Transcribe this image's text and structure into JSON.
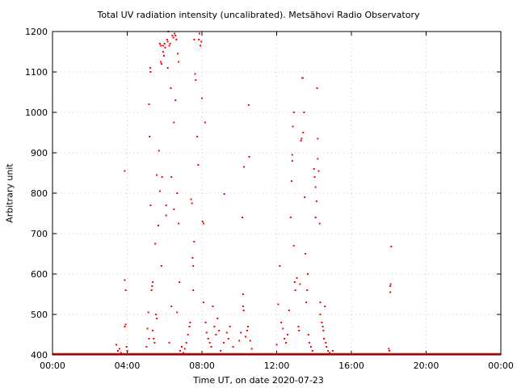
{
  "chart_data": {
    "type": "scatter",
    "title": "Total UV radiation intensity (uncalibrated). Metsähovi Radio Observatory",
    "xlabel": "Time UT, on date 2020-07-23",
    "ylabel": "Arbitrary unit",
    "xlim": [
      "00:00",
      "24:00"
    ],
    "ylim": [
      400,
      1200
    ],
    "x_ticks": [
      "00:00",
      "04:00",
      "08:00",
      "12:00",
      "16:00",
      "20:00",
      "00:00"
    ],
    "y_ticks": [
      "400",
      "500",
      "600",
      "700",
      "800",
      "900",
      "1000",
      "1100",
      "1200"
    ],
    "grid": true,
    "series_color": "#ff0000",
    "baseline": {
      "value": 400,
      "from": "00:00",
      "to": "24:00"
    },
    "points": [
      {
        "x": "03:25",
        "y": 425
      },
      {
        "x": "03:30",
        "y": 410
      },
      {
        "x": "03:35",
        "y": 415
      },
      {
        "x": "03:40",
        "y": 405
      },
      {
        "x": "03:52",
        "y": 855
      },
      {
        "x": "03:52",
        "y": 585
      },
      {
        "x": "03:55",
        "y": 560
      },
      {
        "x": "03:52",
        "y": 470
      },
      {
        "x": "03:55",
        "y": 475
      },
      {
        "x": "03:58",
        "y": 420
      },
      {
        "x": "04:00",
        "y": 410
      },
      {
        "x": "05:02",
        "y": 420
      },
      {
        "x": "05:05",
        "y": 465
      },
      {
        "x": "05:08",
        "y": 505
      },
      {
        "x": "05:10",
        "y": 440
      },
      {
        "x": "05:10",
        "y": 1020
      },
      {
        "x": "05:12",
        "y": 940
      },
      {
        "x": "05:14",
        "y": 1110
      },
      {
        "x": "05:15",
        "y": 1100
      },
      {
        "x": "05:15",
        "y": 770
      },
      {
        "x": "05:18",
        "y": 560
      },
      {
        "x": "05:20",
        "y": 570
      },
      {
        "x": "05:22",
        "y": 580
      },
      {
        "x": "05:22",
        "y": 460
      },
      {
        "x": "05:25",
        "y": 440
      },
      {
        "x": "05:28",
        "y": 430
      },
      {
        "x": "05:30",
        "y": 675
      },
      {
        "x": "05:32",
        "y": 500
      },
      {
        "x": "05:35",
        "y": 490
      },
      {
        "x": "05:35",
        "y": 845
      },
      {
        "x": "05:40",
        "y": 720
      },
      {
        "x": "05:42",
        "y": 905
      },
      {
        "x": "05:45",
        "y": 805
      },
      {
        "x": "05:45",
        "y": 1170
      },
      {
        "x": "05:48",
        "y": 1165
      },
      {
        "x": "05:48",
        "y": 1125
      },
      {
        "x": "05:50",
        "y": 1120
      },
      {
        "x": "05:50",
        "y": 620
      },
      {
        "x": "05:52",
        "y": 840
      },
      {
        "x": "05:55",
        "y": 1150
      },
      {
        "x": "05:55",
        "y": 1165
      },
      {
        "x": "05:58",
        "y": 1140
      },
      {
        "x": "06:00",
        "y": 1170
      },
      {
        "x": "06:02",
        "y": 1160
      },
      {
        "x": "06:05",
        "y": 745
      },
      {
        "x": "06:05",
        "y": 770
      },
      {
        "x": "06:08",
        "y": 1180
      },
      {
        "x": "06:10",
        "y": 1175
      },
      {
        "x": "06:10",
        "y": 1110
      },
      {
        "x": "06:12",
        "y": 1200
      },
      {
        "x": "06:15",
        "y": 1165
      },
      {
        "x": "06:15",
        "y": 430
      },
      {
        "x": "06:18",
        "y": 1170
      },
      {
        "x": "06:20",
        "y": 1060
      },
      {
        "x": "06:22",
        "y": 840
      },
      {
        "x": "06:22",
        "y": 520
      },
      {
        "x": "06:25",
        "y": 1190
      },
      {
        "x": "06:28",
        "y": 1185
      },
      {
        "x": "06:30",
        "y": 975
      },
      {
        "x": "06:30",
        "y": 760
      },
      {
        "x": "06:32",
        "y": 1195
      },
      {
        "x": "06:35",
        "y": 1190
      },
      {
        "x": "06:35",
        "y": 1030
      },
      {
        "x": "06:38",
        "y": 1180
      },
      {
        "x": "06:40",
        "y": 800
      },
      {
        "x": "06:40",
        "y": 505
      },
      {
        "x": "06:42",
        "y": 1145
      },
      {
        "x": "06:45",
        "y": 1125
      },
      {
        "x": "06:45",
        "y": 725
      },
      {
        "x": "06:48",
        "y": 580
      },
      {
        "x": "06:50",
        "y": 410
      },
      {
        "x": "06:55",
        "y": 420
      },
      {
        "x": "07:00",
        "y": 405
      },
      {
        "x": "07:05",
        "y": 415
      },
      {
        "x": "07:10",
        "y": 430
      },
      {
        "x": "07:15",
        "y": 450
      },
      {
        "x": "07:20",
        "y": 470
      },
      {
        "x": "07:22",
        "y": 480
      },
      {
        "x": "07:25",
        "y": 785
      },
      {
        "x": "07:28",
        "y": 775
      },
      {
        "x": "07:30",
        "y": 640
      },
      {
        "x": "07:32",
        "y": 620
      },
      {
        "x": "07:32",
        "y": 560
      },
      {
        "x": "07:35",
        "y": 680
      },
      {
        "x": "07:35",
        "y": 1180
      },
      {
        "x": "07:38",
        "y": 1095
      },
      {
        "x": "07:40",
        "y": 1080
      },
      {
        "x": "07:45",
        "y": 940
      },
      {
        "x": "07:48",
        "y": 870
      },
      {
        "x": "07:50",
        "y": 1180
      },
      {
        "x": "07:52",
        "y": 1195
      },
      {
        "x": "07:55",
        "y": 1165
      },
      {
        "x": "07:58",
        "y": 1175
      },
      {
        "x": "08:00",
        "y": 1035
      },
      {
        "x": "08:02",
        "y": 730
      },
      {
        "x": "08:05",
        "y": 725
      },
      {
        "x": "08:05",
        "y": 530
      },
      {
        "x": "08:10",
        "y": 975
      },
      {
        "x": "08:12",
        "y": 480
      },
      {
        "x": "08:15",
        "y": 455
      },
      {
        "x": "08:20",
        "y": 440
      },
      {
        "x": "08:25",
        "y": 430
      },
      {
        "x": "08:30",
        "y": 420
      },
      {
        "x": "08:35",
        "y": 520
      },
      {
        "x": "08:40",
        "y": 470
      },
      {
        "x": "08:45",
        "y": 450
      },
      {
        "x": "08:50",
        "y": 490
      },
      {
        "x": "08:55",
        "y": 460
      },
      {
        "x": "09:00",
        "y": 410
      },
      {
        "x": "09:10",
        "y": 430
      },
      {
        "x": "09:12",
        "y": 798
      },
      {
        "x": "09:20",
        "y": 455
      },
      {
        "x": "09:25",
        "y": 440
      },
      {
        "x": "09:30",
        "y": 470
      },
      {
        "x": "09:40",
        "y": 420
      },
      {
        "x": "10:00",
        "y": 435
      },
      {
        "x": "10:05",
        "y": 455
      },
      {
        "x": "10:10",
        "y": 740
      },
      {
        "x": "10:12",
        "y": 550
      },
      {
        "x": "10:12",
        "y": 520
      },
      {
        "x": "10:14",
        "y": 510
      },
      {
        "x": "10:15",
        "y": 865
      },
      {
        "x": "10:20",
        "y": 445
      },
      {
        "x": "10:25",
        "y": 460
      },
      {
        "x": "10:28",
        "y": 470
      },
      {
        "x": "10:30",
        "y": 1018
      },
      {
        "x": "10:32",
        "y": 890
      },
      {
        "x": "10:35",
        "y": 435
      },
      {
        "x": "10:40",
        "y": 415
      },
      {
        "x": "12:00",
        "y": 425
      },
      {
        "x": "12:05",
        "y": 525
      },
      {
        "x": "12:10",
        "y": 620
      },
      {
        "x": "12:15",
        "y": 480
      },
      {
        "x": "12:20",
        "y": 465
      },
      {
        "x": "12:25",
        "y": 440
      },
      {
        "x": "12:30",
        "y": 430
      },
      {
        "x": "12:35",
        "y": 450
      },
      {
        "x": "12:40",
        "y": 510
      },
      {
        "x": "12:45",
        "y": 740
      },
      {
        "x": "12:48",
        "y": 830
      },
      {
        "x": "12:50",
        "y": 880
      },
      {
        "x": "12:50",
        "y": 895
      },
      {
        "x": "12:52",
        "y": 965
      },
      {
        "x": "12:55",
        "y": 1000
      },
      {
        "x": "12:55",
        "y": 670
      },
      {
        "x": "12:58",
        "y": 580
      },
      {
        "x": "13:00",
        "y": 560
      },
      {
        "x": "13:05",
        "y": 590
      },
      {
        "x": "13:10",
        "y": 470
      },
      {
        "x": "13:12",
        "y": 460
      },
      {
        "x": "13:15",
        "y": 575
      },
      {
        "x": "13:18",
        "y": 930
      },
      {
        "x": "13:20",
        "y": 935
      },
      {
        "x": "13:22",
        "y": 1085
      },
      {
        "x": "13:24",
        "y": 1085
      },
      {
        "x": "13:25",
        "y": 950
      },
      {
        "x": "13:28",
        "y": 1000
      },
      {
        "x": "13:30",
        "y": 790
      },
      {
        "x": "13:32",
        "y": 650
      },
      {
        "x": "13:35",
        "y": 530
      },
      {
        "x": "13:38",
        "y": 560
      },
      {
        "x": "13:40",
        "y": 600
      },
      {
        "x": "13:42",
        "y": 450
      },
      {
        "x": "13:45",
        "y": 430
      },
      {
        "x": "13:50",
        "y": 420
      },
      {
        "x": "13:55",
        "y": 410
      },
      {
        "x": "14:00",
        "y": 860
      },
      {
        "x": "14:02",
        "y": 840
      },
      {
        "x": "14:05",
        "y": 815
      },
      {
        "x": "14:05",
        "y": 740
      },
      {
        "x": "14:08",
        "y": 780
      },
      {
        "x": "14:10",
        "y": 1060
      },
      {
        "x": "14:12",
        "y": 935
      },
      {
        "x": "14:12",
        "y": 885
      },
      {
        "x": "14:15",
        "y": 855
      },
      {
        "x": "14:18",
        "y": 725
      },
      {
        "x": "14:20",
        "y": 530
      },
      {
        "x": "14:20",
        "y": 500
      },
      {
        "x": "14:25",
        "y": 480
      },
      {
        "x": "14:28",
        "y": 470
      },
      {
        "x": "14:30",
        "y": 460
      },
      {
        "x": "14:32",
        "y": 440
      },
      {
        "x": "14:35",
        "y": 520
      },
      {
        "x": "14:38",
        "y": 430
      },
      {
        "x": "14:40",
        "y": 420
      },
      {
        "x": "14:45",
        "y": 410
      },
      {
        "x": "14:50",
        "y": 405
      },
      {
        "x": "15:00",
        "y": 410
      },
      {
        "x": "18:00",
        "y": 415
      },
      {
        "x": "18:02",
        "y": 410
      },
      {
        "x": "18:05",
        "y": 555
      },
      {
        "x": "18:05",
        "y": 570
      },
      {
        "x": "18:06",
        "y": 575
      },
      {
        "x": "18:08",
        "y": 668
      }
    ]
  }
}
